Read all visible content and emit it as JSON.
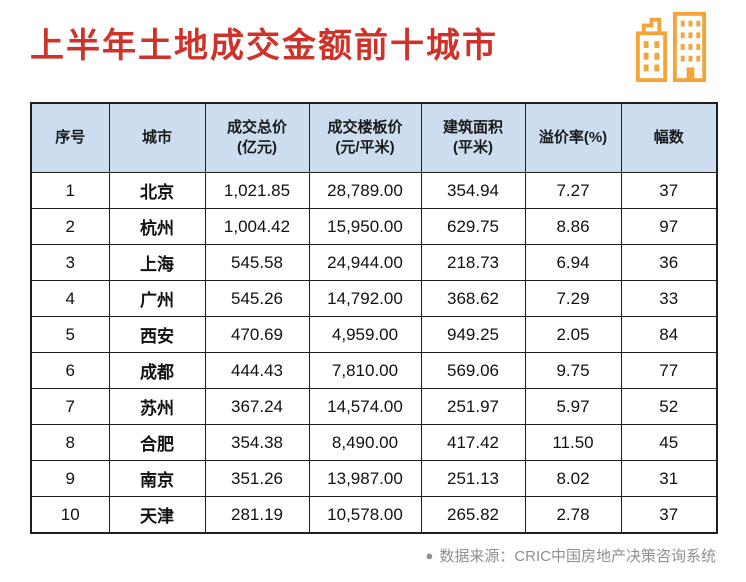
{
  "title": "上半年土地成交金额前十城市",
  "colors": {
    "title_red": "#CE332A",
    "header_bg": "#CBDDEE",
    "table_border": "#1F1F1F",
    "icon_orange": "#F3A43B",
    "footer_gray": "#8F8F8F"
  },
  "footer": {
    "bullet": "●",
    "source_text": "数据来源：CRIC中国房地产决策咨询系统"
  },
  "chart_data": {
    "type": "table",
    "title": "上半年土地成交金额前十城市",
    "columns": [
      "序号",
      "城市",
      "成交总价\n(亿元)",
      "成交楼板价\n(元/平米)",
      "建筑面积\n(平米)",
      "溢价率(%)",
      "幅数"
    ],
    "rows": [
      [
        "1",
        "北京",
        "1,021.85",
        "28,789.00",
        "354.94",
        "7.27",
        "37"
      ],
      [
        "2",
        "杭州",
        "1,004.42",
        "15,950.00",
        "629.75",
        "8.86",
        "97"
      ],
      [
        "3",
        "上海",
        "545.58",
        "24,944.00",
        "218.73",
        "6.94",
        "36"
      ],
      [
        "4",
        "广州",
        "545.26",
        "14,792.00",
        "368.62",
        "7.29",
        "33"
      ],
      [
        "5",
        "西安",
        "470.69",
        "4,959.00",
        "949.25",
        "2.05",
        "84"
      ],
      [
        "6",
        "成都",
        "444.43",
        "7,810.00",
        "569.06",
        "9.75",
        "77"
      ],
      [
        "7",
        "苏州",
        "367.24",
        "14,574.00",
        "251.97",
        "5.97",
        "52"
      ],
      [
        "8",
        "合肥",
        "354.38",
        "8,490.00",
        "417.42",
        "11.50",
        "45"
      ],
      [
        "9",
        "南京",
        "351.26",
        "13,987.00",
        "251.13",
        "8.02",
        "31"
      ],
      [
        "10",
        "天津",
        "281.19",
        "10,578.00",
        "265.82",
        "2.78",
        "37"
      ]
    ]
  }
}
